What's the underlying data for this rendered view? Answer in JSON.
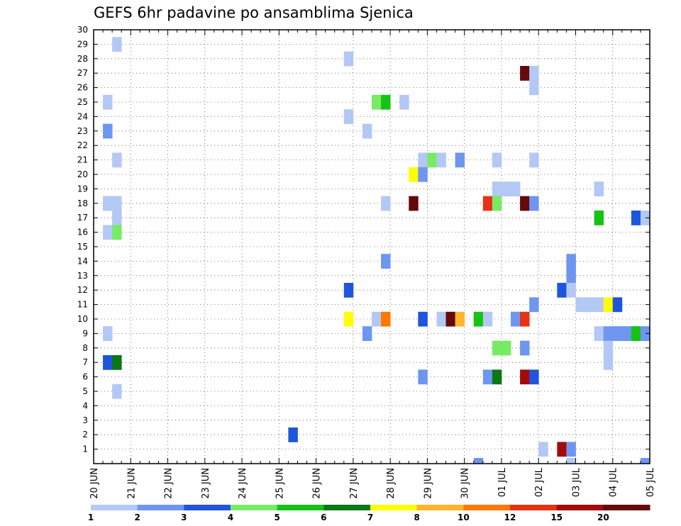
{
  "chart_data": {
    "type": "heatmap",
    "title": "GEFS 6hr padavine po ansamblima Sjenica",
    "xlabel": "",
    "ylabel": "",
    "x_tick_labels": [
      "20 JUN",
      "21 JUN",
      "22 JUN",
      "23 JUN",
      "24 JUN",
      "25 JUN",
      "26 JUN",
      "27 JUN",
      "28 JUN",
      "29 JUN",
      "30 JUN",
      "01 JUL",
      "02 JUL",
      "03 JUL",
      "04 JUL",
      "05 JUL"
    ],
    "x_range_days": [
      0,
      15
    ],
    "y_tick_labels": [
      "1",
      "2",
      "3",
      "4",
      "5",
      "6",
      "7",
      "8",
      "9",
      "10",
      "11",
      "12",
      "13",
      "14",
      "15",
      "16",
      "17",
      "18",
      "19",
      "20",
      "21",
      "22",
      "23",
      "24",
      "25",
      "26",
      "27",
      "28",
      "29",
      "30"
    ],
    "y_range": [
      0,
      30
    ],
    "grid": true,
    "legend": {
      "placement": "bottom",
      "colors": [
        "#b4c8f5",
        "#6e96f0",
        "#1e55dc",
        "#78eb64",
        "#14c314",
        "#0a7814",
        "#ffff00",
        "#ffb42d",
        "#ff7800",
        "#e63214",
        "#a50a0a",
        "#640a0a"
      ],
      "boundary_labels": [
        "1",
        "2",
        "3",
        "4",
        "5",
        "6",
        "7",
        "8",
        "10",
        "12",
        "15",
        "20"
      ]
    },
    "cells": [
      {
        "d": 0.5,
        "m": 29,
        "c": 1
      },
      {
        "d": 0.25,
        "m": 25,
        "c": 1
      },
      {
        "d": 0.25,
        "m": 23,
        "c": 2
      },
      {
        "d": 0.5,
        "m": 21,
        "c": 1
      },
      {
        "d": 0.25,
        "m": 18,
        "c": 1
      },
      {
        "d": 0.5,
        "m": 18,
        "c": 1
      },
      {
        "d": 0.5,
        "m": 17,
        "c": 1
      },
      {
        "d": 0.25,
        "m": 16,
        "c": 1
      },
      {
        "d": 0.5,
        "m": 16,
        "c": 4
      },
      {
        "d": 0.25,
        "m": 9,
        "c": 1
      },
      {
        "d": 0.25,
        "m": 7,
        "c": 3
      },
      {
        "d": 0.5,
        "m": 7,
        "c": 6
      },
      {
        "d": 0.5,
        "m": 5,
        "c": 1
      },
      {
        "d": 5.25,
        "m": 2,
        "c": 3
      },
      {
        "d": 6.75,
        "m": 28,
        "c": 1
      },
      {
        "d": 6.75,
        "m": 24,
        "c": 1
      },
      {
        "d": 7.25,
        "m": 23,
        "c": 1
      },
      {
        "d": 6.75,
        "m": 12,
        "c": 3
      },
      {
        "d": 6.75,
        "m": 10,
        "c": 7
      },
      {
        "d": 7.25,
        "m": 9,
        "c": 2
      },
      {
        "d": 7.5,
        "m": 25,
        "c": 4
      },
      {
        "d": 7.75,
        "m": 25,
        "c": 5
      },
      {
        "d": 7.75,
        "m": 18,
        "c": 1
      },
      {
        "d": 7.75,
        "m": 14,
        "c": 2
      },
      {
        "d": 7.5,
        "m": 10,
        "c": 1
      },
      {
        "d": 7.75,
        "m": 10,
        "c": 9
      },
      {
        "d": 8.25,
        "m": 25,
        "c": 1
      },
      {
        "d": 8.75,
        "m": 21,
        "c": 1
      },
      {
        "d": 9.0,
        "m": 21,
        "c": 4
      },
      {
        "d": 9.25,
        "m": 21,
        "c": 1
      },
      {
        "d": 8.5,
        "m": 20,
        "c": 7
      },
      {
        "d": 8.75,
        "m": 20,
        "c": 2
      },
      {
        "d": 8.5,
        "m": 18,
        "c": 12
      },
      {
        "d": 8.75,
        "m": 10,
        "c": 3
      },
      {
        "d": 8.75,
        "m": 6,
        "c": 2
      },
      {
        "d": 9.75,
        "m": 21,
        "c": 2
      },
      {
        "d": 9.25,
        "m": 10,
        "c": 1
      },
      {
        "d": 9.5,
        "m": 10,
        "c": 12
      },
      {
        "d": 9.75,
        "m": 10,
        "c": 8
      },
      {
        "d": 10.25,
        "m": 10,
        "c": 5
      },
      {
        "d": 10.5,
        "m": 10,
        "c": 1
      },
      {
        "d": 10.75,
        "m": 21,
        "c": 1
      },
      {
        "d": 10.75,
        "m": 19,
        "c": 1
      },
      {
        "d": 11.0,
        "m": 19,
        "c": 1
      },
      {
        "d": 11.25,
        "m": 19,
        "c": 1
      },
      {
        "d": 10.5,
        "m": 18,
        "c": 10
      },
      {
        "d": 10.75,
        "m": 18,
        "c": 4
      },
      {
        "d": 10.75,
        "m": 8,
        "c": 4
      },
      {
        "d": 11.0,
        "m": 8,
        "c": 4
      },
      {
        "d": 10.5,
        "m": 6,
        "c": 2
      },
      {
        "d": 10.75,
        "m": 6,
        "c": 6
      },
      {
        "d": 11.25,
        "m": 10,
        "c": 2
      },
      {
        "d": 11.5,
        "m": 10,
        "c": 10
      },
      {
        "d": 11.5,
        "m": 27,
        "c": 12
      },
      {
        "d": 11.75,
        "m": 27,
        "c": 1
      },
      {
        "d": 11.75,
        "m": 26,
        "c": 1
      },
      {
        "d": 11.75,
        "m": 21,
        "c": 1
      },
      {
        "d": 11.5,
        "m": 18,
        "c": 12
      },
      {
        "d": 11.75,
        "m": 18,
        "c": 2
      },
      {
        "d": 11.75,
        "m": 11,
        "c": 2
      },
      {
        "d": 11.5,
        "m": 8,
        "c": 2
      },
      {
        "d": 11.5,
        "m": 6,
        "c": 11
      },
      {
        "d": 11.75,
        "m": 6,
        "c": 3
      },
      {
        "d": 12.0,
        "m": 1,
        "c": 1
      },
      {
        "d": 12.5,
        "m": 1,
        "c": 11
      },
      {
        "d": 12.75,
        "m": 1,
        "c": 2
      },
      {
        "d": 12.75,
        "m": 14,
        "c": 2
      },
      {
        "d": 12.75,
        "m": 13,
        "c": 2
      },
      {
        "d": 12.5,
        "m": 12,
        "c": 3
      },
      {
        "d": 12.75,
        "m": 12,
        "c": 1
      },
      {
        "d": 13.0,
        "m": 11,
        "c": 1
      },
      {
        "d": 13.25,
        "m": 11,
        "c": 1
      },
      {
        "d": 13.5,
        "m": 11,
        "c": 1
      },
      {
        "d": 13.75,
        "m": 11,
        "c": 7
      },
      {
        "d": 14.0,
        "m": 11,
        "c": 3
      },
      {
        "d": 13.5,
        "m": 19,
        "c": 1
      },
      {
        "d": 13.5,
        "m": 17,
        "c": 5
      },
      {
        "d": 13.5,
        "m": 9,
        "c": 1
      },
      {
        "d": 13.75,
        "m": 9,
        "c": 2
      },
      {
        "d": 13.75,
        "m": 8,
        "c": 1
      },
      {
        "d": 13.75,
        "m": 7,
        "c": 1
      },
      {
        "d": 14.5,
        "m": 17,
        "c": 3
      },
      {
        "d": 14.75,
        "m": 17,
        "c": 1
      },
      {
        "d": 14.0,
        "m": 9,
        "c": 2
      },
      {
        "d": 14.25,
        "m": 9,
        "c": 2
      },
      {
        "d": 14.5,
        "m": 9,
        "c": 5
      },
      {
        "d": 14.75,
        "m": 9,
        "c": 2
      }
    ],
    "edge_marks": [
      {
        "d": 10.25,
        "c": 2
      },
      {
        "d": 12.75,
        "c": 1
      },
      {
        "d": 14.75,
        "c": 2
      }
    ]
  }
}
